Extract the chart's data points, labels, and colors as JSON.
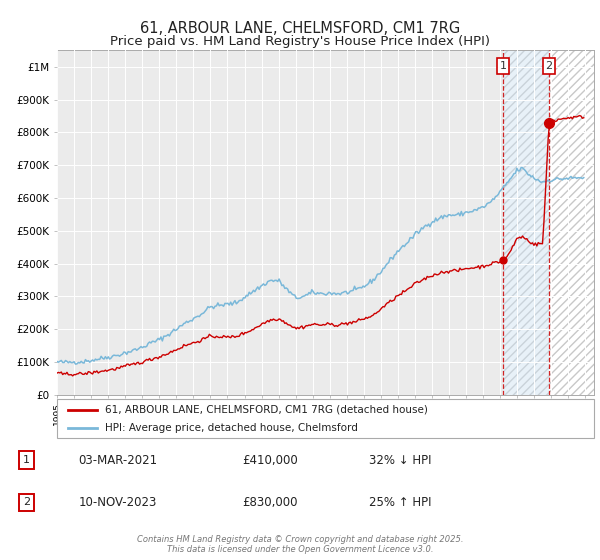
{
  "title": "61, ARBOUR LANE, CHELMSFORD, CM1 7RG",
  "subtitle": "Price paid vs. HM Land Registry's House Price Index (HPI)",
  "title_fontsize": 10.5,
  "subtitle_fontsize": 9.5,
  "background_color": "#ffffff",
  "plot_bg_color": "#ebebeb",
  "hpi_color": "#7ab8d9",
  "price_color": "#cc0000",
  "ylim": [
    0,
    1050000
  ],
  "yticks": [
    0,
    100000,
    200000,
    300000,
    400000,
    500000,
    600000,
    700000,
    800000,
    900000,
    1000000
  ],
  "ytick_labels": [
    "£0",
    "£100K",
    "£200K",
    "£300K",
    "£400K",
    "£500K",
    "£600K",
    "£700K",
    "£800K",
    "£900K",
    "£1M"
  ],
  "xlim_start": 1995.0,
  "xlim_end": 2026.5,
  "xticks": [
    1995,
    1996,
    1997,
    1998,
    1999,
    2000,
    2001,
    2002,
    2003,
    2004,
    2005,
    2006,
    2007,
    2008,
    2009,
    2010,
    2011,
    2012,
    2013,
    2014,
    2015,
    2016,
    2017,
    2018,
    2019,
    2020,
    2021,
    2022,
    2023,
    2024,
    2025,
    2026
  ],
  "event1_x": 2021.17,
  "event1_y": 410000,
  "event1_label": "1",
  "event1_date": "03-MAR-2021",
  "event1_price": "£410,000",
  "event1_hpi": "32% ↓ HPI",
  "event2_x": 2023.86,
  "event2_y": 830000,
  "event2_label": "2",
  "event2_date": "10-NOV-2023",
  "event2_price": "£830,000",
  "event2_hpi": "25% ↑ HPI",
  "legend_line1": "61, ARBOUR LANE, CHELMSFORD, CM1 7RG (detached house)",
  "legend_line2": "HPI: Average price, detached house, Chelmsford",
  "footer": "Contains HM Land Registry data © Crown copyright and database right 2025.\nThis data is licensed under the Open Government Licence v3.0.",
  "hatch_region_start": 2021.17,
  "hatch_region_end": 2026.5
}
